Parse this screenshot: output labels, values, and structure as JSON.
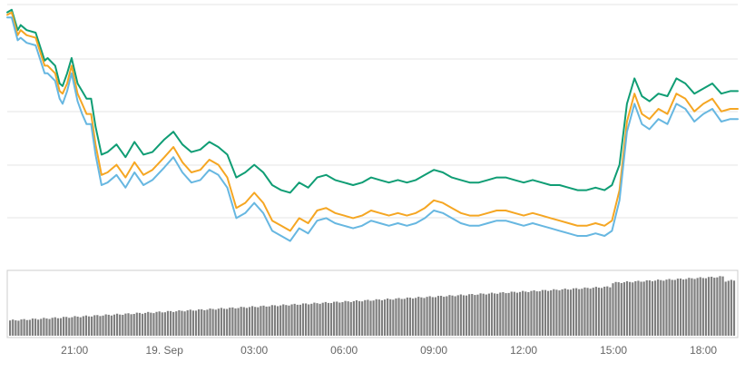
{
  "colors": {
    "series_green": "#0f9d74",
    "series_orange": "#f5a623",
    "series_blue": "#67b7e1",
    "volume_bar": "#7f7f7f",
    "grid": "#e6e6e6",
    "tick_text": "#666666"
  },
  "chart_data": {
    "type": "line",
    "title": "",
    "xlabel": "",
    "ylabel": "",
    "grid": true,
    "legend": "none",
    "x_ticks": [
      "21:00",
      "19. Sep",
      "03:00",
      "06:00",
      "09:00",
      "12:00",
      "15:00",
      "18:00"
    ],
    "x_tick_hours": [
      21,
      24,
      27,
      30,
      33,
      36,
      39,
      42
    ],
    "x_range_hours": [
      18.75,
      43.15
    ],
    "y_range": [
      0,
      100
    ],
    "series": [
      {
        "color": "#0f9d74",
        "x": [
          18.75,
          18.9,
          19.1,
          19.2,
          19.4,
          19.7,
          20.0,
          20.1,
          20.35,
          20.5,
          20.6,
          20.75,
          20.9,
          21.1,
          21.25,
          21.4,
          21.55,
          21.7,
          21.9,
          22.1,
          22.4,
          22.7,
          23.0,
          23.3,
          23.6,
          24.0,
          24.3,
          24.6,
          24.9,
          25.2,
          25.5,
          25.8,
          26.1,
          26.4,
          26.7,
          27.0,
          27.3,
          27.6,
          27.9,
          28.2,
          28.5,
          28.8,
          29.1,
          29.4,
          29.7,
          30.0,
          30.3,
          30.6,
          30.9,
          31.2,
          31.5,
          31.8,
          32.1,
          32.4,
          32.7,
          33.0,
          33.3,
          33.6,
          33.9,
          34.2,
          34.5,
          34.8,
          35.1,
          35.4,
          35.7,
          36.0,
          36.3,
          36.6,
          36.9,
          37.2,
          37.5,
          37.8,
          38.1,
          38.4,
          38.7,
          38.95,
          39.2,
          39.45,
          39.7,
          39.95,
          40.2,
          40.5,
          40.8,
          41.1,
          41.4,
          41.7,
          42.0,
          42.3,
          42.6,
          42.9,
          43.15
        ],
        "y": [
          98,
          99,
          91,
          93,
          91,
          90,
          79,
          80,
          77,
          70,
          69,
          74,
          80,
          70,
          67,
          64,
          64,
          53,
          42,
          43,
          46,
          41,
          47,
          42,
          43,
          48,
          51,
          46,
          43,
          44,
          47,
          45,
          42,
          33,
          35,
          38,
          35,
          30,
          28,
          27,
          31,
          29,
          33,
          34,
          32,
          31,
          30,
          31,
          33,
          32,
          31,
          32,
          31,
          32,
          34,
          36,
          35,
          33,
          32,
          31,
          31,
          32,
          33,
          33,
          32,
          31,
          32,
          31,
          30,
          30,
          29,
          28,
          28,
          29,
          28,
          30,
          38,
          62,
          72,
          65,
          63,
          66,
          65,
          72,
          70,
          66,
          68,
          70,
          66,
          67,
          67
        ]
      },
      {
        "color": "#f5a623",
        "x": [
          18.75,
          18.9,
          19.1,
          19.2,
          19.4,
          19.7,
          20.0,
          20.1,
          20.35,
          20.5,
          20.6,
          20.75,
          20.9,
          21.1,
          21.25,
          21.4,
          21.55,
          21.7,
          21.9,
          22.1,
          22.4,
          22.7,
          23.0,
          23.3,
          23.6,
          24.0,
          24.3,
          24.6,
          24.9,
          25.2,
          25.5,
          25.8,
          26.1,
          26.4,
          26.7,
          27.0,
          27.3,
          27.6,
          27.9,
          28.2,
          28.5,
          28.8,
          29.1,
          29.4,
          29.7,
          30.0,
          30.3,
          30.6,
          30.9,
          31.2,
          31.5,
          31.8,
          32.1,
          32.4,
          32.7,
          33.0,
          33.3,
          33.6,
          33.9,
          34.2,
          34.5,
          34.8,
          35.1,
          35.4,
          35.7,
          36.0,
          36.3,
          36.6,
          36.9,
          37.2,
          37.5,
          37.8,
          38.1,
          38.4,
          38.7,
          38.95,
          39.2,
          39.45,
          39.7,
          39.95,
          40.2,
          40.5,
          40.8,
          41.1,
          41.4,
          41.7,
          42.0,
          42.3,
          42.6,
          42.9,
          43.15
        ],
        "y": [
          97,
          98,
          89,
          91,
          89,
          88,
          77,
          77,
          74,
          67,
          66,
          70,
          77,
          66,
          62,
          58,
          58,
          46,
          34,
          35,
          38,
          33,
          39,
          34,
          36,
          41,
          45,
          39,
          35,
          36,
          40,
          38,
          33,
          21,
          23,
          27,
          23,
          16,
          14,
          12,
          17,
          15,
          20,
          21,
          19,
          18,
          17,
          18,
          20,
          19,
          18,
          19,
          18,
          19,
          21,
          24,
          23,
          21,
          19,
          18,
          18,
          19,
          20,
          20,
          19,
          18,
          19,
          18,
          17,
          16,
          15,
          14,
          14,
          15,
          14,
          16,
          28,
          55,
          66,
          58,
          56,
          60,
          58,
          66,
          64,
          59,
          62,
          64,
          59,
          60,
          60
        ]
      },
      {
        "color": "#67b7e1",
        "x": [
          18.75,
          18.9,
          19.1,
          19.2,
          19.4,
          19.7,
          20.0,
          20.1,
          20.35,
          20.5,
          20.6,
          20.75,
          20.9,
          21.1,
          21.25,
          21.4,
          21.55,
          21.7,
          21.9,
          22.1,
          22.4,
          22.7,
          23.0,
          23.3,
          23.6,
          24.0,
          24.3,
          24.6,
          24.9,
          25.2,
          25.5,
          25.8,
          26.1,
          26.4,
          26.7,
          27.0,
          27.3,
          27.6,
          27.9,
          28.2,
          28.5,
          28.8,
          29.1,
          29.4,
          29.7,
          30.0,
          30.3,
          30.6,
          30.9,
          31.2,
          31.5,
          31.8,
          32.1,
          32.4,
          32.7,
          33.0,
          33.3,
          33.6,
          33.9,
          34.2,
          34.5,
          34.8,
          35.1,
          35.4,
          35.7,
          36.0,
          36.3,
          36.6,
          36.9,
          37.2,
          37.5,
          37.8,
          38.1,
          38.4,
          38.7,
          38.95,
          39.2,
          39.45,
          39.7,
          39.95,
          40.2,
          40.5,
          40.8,
          41.1,
          41.4,
          41.7,
          42.0,
          42.3,
          42.6,
          42.9,
          43.15
        ],
        "y": [
          96,
          96,
          87,
          88,
          86,
          85,
          74,
          74,
          71,
          64,
          62,
          67,
          74,
          63,
          58,
          54,
          54,
          42,
          30,
          31,
          34,
          29,
          35,
          30,
          32,
          37,
          41,
          35,
          31,
          32,
          36,
          34,
          29,
          17,
          19,
          23,
          19,
          12,
          10,
          8,
          13,
          11,
          16,
          17,
          15,
          14,
          13,
          14,
          16,
          15,
          14,
          15,
          14,
          15,
          17,
          20,
          19,
          17,
          15,
          14,
          14,
          15,
          16,
          16,
          15,
          14,
          15,
          14,
          13,
          12,
          11,
          10,
          10,
          11,
          10,
          12,
          24,
          51,
          62,
          54,
          52,
          56,
          54,
          62,
          60,
          55,
          58,
          60,
          55,
          56,
          56
        ]
      }
    ],
    "volume": {
      "type": "bar",
      "x_range_hours": [
        18.75,
        43.15
      ],
      "start_level": 0.24,
      "end_level": 0.88
    }
  }
}
